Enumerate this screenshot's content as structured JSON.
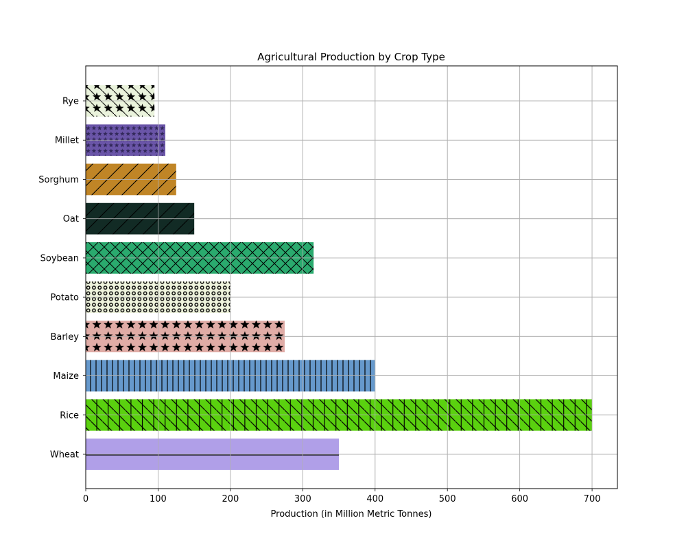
{
  "chart_data": {
    "type": "bar",
    "orientation": "horizontal",
    "title": "Agricultural Production by Crop Type",
    "xlabel": "Production (in Million Metric Tonnes)",
    "ylabel": "",
    "xlim": [
      0,
      735
    ],
    "xticks": [
      0,
      100,
      200,
      300,
      400,
      500,
      600,
      700
    ],
    "grid": true,
    "categories": [
      "Wheat",
      "Rice",
      "Maize",
      "Barley",
      "Potato",
      "Soybean",
      "Oat",
      "Sorghum",
      "Millet",
      "Rye"
    ],
    "values": [
      350,
      700,
      400,
      275,
      200,
      315,
      150,
      125,
      110,
      95
    ],
    "colors": [
      "#b09fe8",
      "#5ad10f",
      "#6699cc",
      "#e0aca6",
      "#eef3dc",
      "#2aaa6e",
      "#122b25",
      "#c08526",
      "#6a55a8",
      "#eaf3dc"
    ],
    "hatches": [
      "horizontal-lines",
      "diagonal-and-vertical",
      "vertical-lines",
      "stars",
      "small-circles",
      "crosshatch",
      "forward-diagonal",
      "forward-diagonal",
      "small-stars",
      "stars-and-backslash"
    ]
  }
}
